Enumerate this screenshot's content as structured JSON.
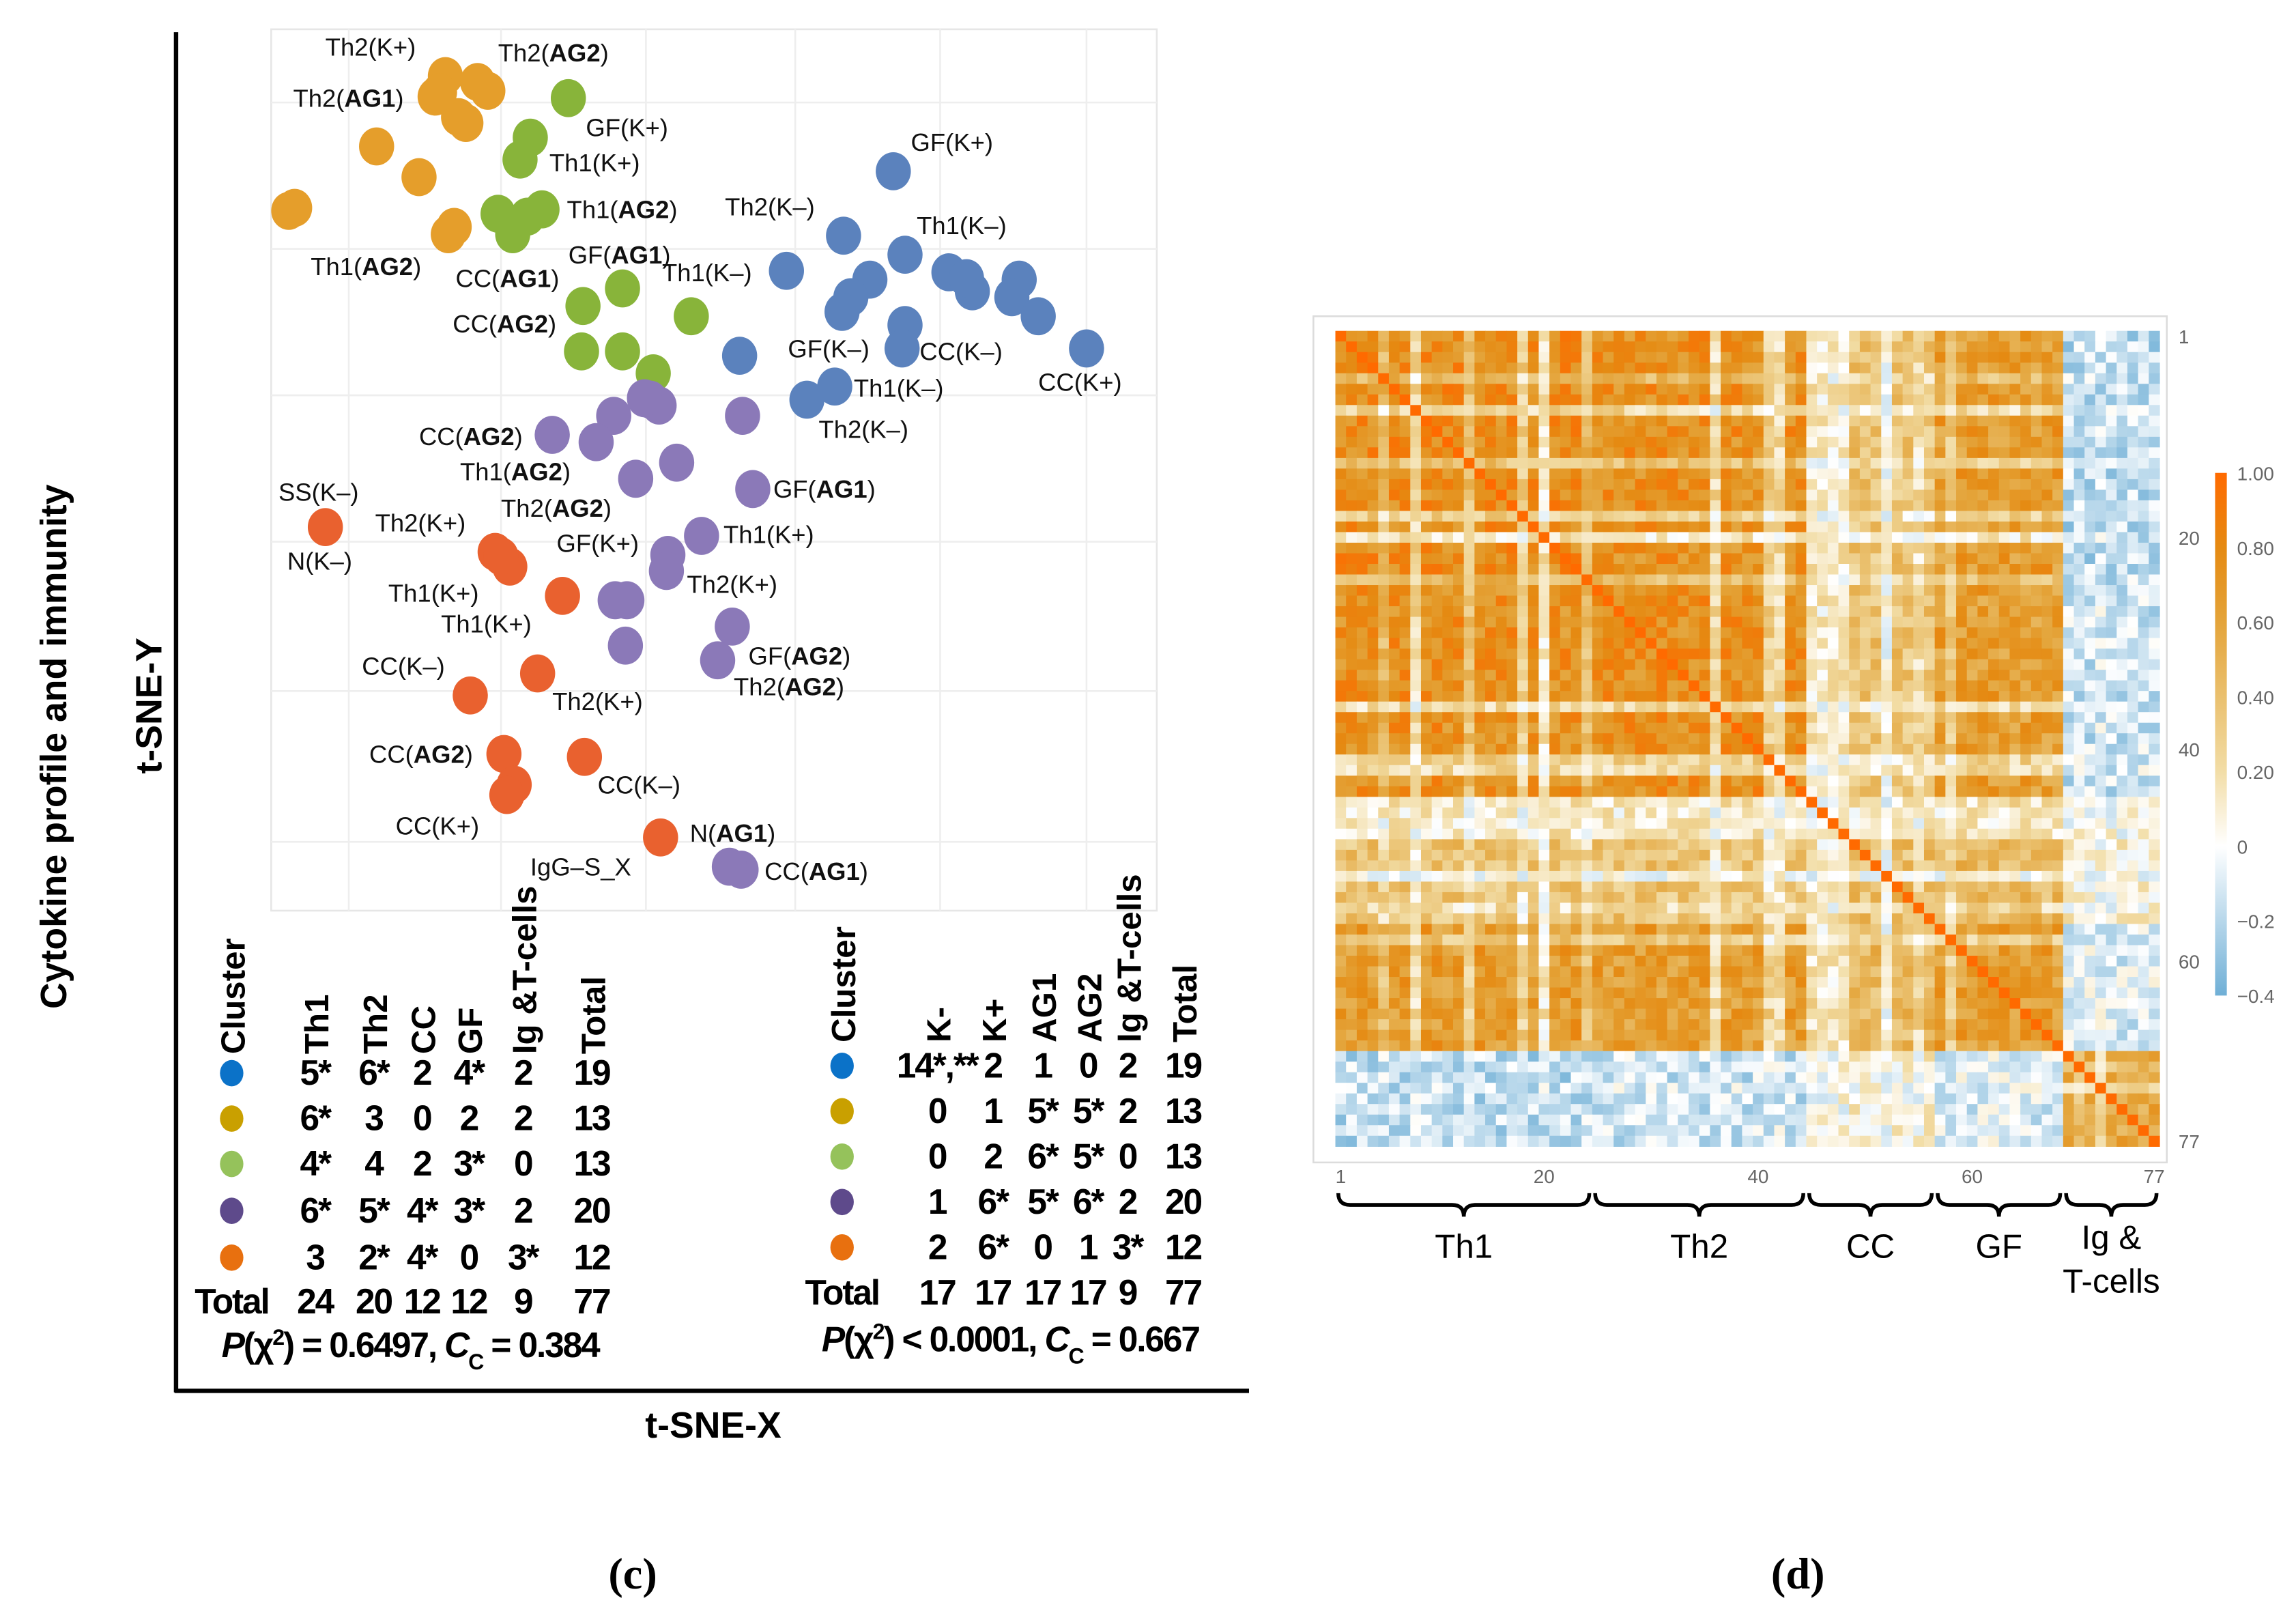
{
  "figure": {
    "panel_c_label": "(c)",
    "panel_d_label": "(d)"
  },
  "chart_data": [
    {
      "type": "scatter",
      "title": "",
      "xlabel": "t-SNE-X",
      "ylabel": "t-SNE-Y",
      "outer_ylabel": "Cytokine profile and immunity",
      "xlim": [
        0,
        605
      ],
      "ylim": [
        0,
        602
      ],
      "grid": true,
      "series": [
        {
          "name": "cluster-blue",
          "color": "#5B82BD",
          "points": [
            [
              425,
              505
            ],
            [
              391,
              461
            ],
            [
              433,
              448
            ],
            [
              352,
              437
            ],
            [
              409,
              431
            ],
            [
              396,
              419
            ],
            [
              390,
              409
            ],
            [
              463,
              436
            ],
            [
              479,
              423
            ],
            [
              511,
              431
            ],
            [
              506,
              419
            ],
            [
              524,
              406
            ],
            [
              433,
              400
            ],
            [
              431,
              384
            ],
            [
              557,
              384
            ],
            [
              320,
              379
            ],
            [
              385,
              358
            ],
            [
              366,
              349
            ],
            [
              475,
              432
            ]
          ]
        },
        {
          "name": "cluster-gold",
          "color": "#E59E2B",
          "points": [
            [
              119,
              570
            ],
            [
              112,
              556
            ],
            [
              141,
              566
            ],
            [
              148,
              560
            ],
            [
              128,
              542
            ],
            [
              133,
              538
            ],
            [
              72,
              522
            ],
            [
              101,
              501
            ],
            [
              12,
              478
            ],
            [
              16,
              480
            ],
            [
              121,
              462
            ],
            [
              125,
              467
            ],
            [
              115,
              559
            ]
          ]
        },
        {
          "name": "cluster-green",
          "color": "#88B43A",
          "points": [
            [
              203,
              555
            ],
            [
              177,
              528
            ],
            [
              170,
              513
            ],
            [
              155,
              476
            ],
            [
              165,
              462
            ],
            [
              185,
              479
            ],
            [
              213,
              413
            ],
            [
              240,
              425
            ],
            [
              287,
              406
            ],
            [
              212,
              382
            ],
            [
              240,
              382
            ],
            [
              261,
              367
            ],
            [
              175,
              474
            ]
          ]
        },
        {
          "name": "cluster-purple",
          "color": "#8B79B8",
          "points": [
            [
              259,
              349
            ],
            [
              265,
              345
            ],
            [
              234,
              338
            ],
            [
              222,
              320
            ],
            [
              192,
              325
            ],
            [
              249,
              295
            ],
            [
              277,
              306
            ],
            [
              322,
              338
            ],
            [
              329,
              288
            ],
            [
              294,
              256
            ],
            [
              271,
              243
            ],
            [
              270,
              232
            ],
            [
              235,
              212
            ],
            [
              243,
              212
            ],
            [
              242,
              181
            ],
            [
              315,
              194
            ],
            [
              305,
              171
            ],
            [
              321,
              28
            ],
            [
              313,
              30
            ],
            [
              255,
              350
            ]
          ]
        },
        {
          "name": "cluster-orange",
          "color": "#E9612F",
          "points": [
            [
              37,
              262
            ],
            [
              153,
              245
            ],
            [
              163,
              235
            ],
            [
              199,
              215
            ],
            [
              182,
              162
            ],
            [
              136,
              147
            ],
            [
              159,
              107
            ],
            [
              214,
              105
            ],
            [
              166,
              86
            ],
            [
              161,
              79
            ],
            [
              266,
              50
            ],
            [
              157,
              242
            ]
          ]
        }
      ],
      "annotations": [
        {
          "text": "Th2(K+)",
          "x": 37,
          "y": 584
        },
        {
          "text": "Th2(AG2)",
          "x": 155,
          "y": 580
        },
        {
          "text": "Th2(AG1)",
          "x": 15,
          "y": 549
        },
        {
          "text": "GF(K+)",
          "x": 215,
          "y": 529
        },
        {
          "text": "Th1(K+)",
          "x": 190,
          "y": 505
        },
        {
          "text": "Th1(AG2)",
          "x": 202,
          "y": 473
        },
        {
          "text": "Th1(AG2)",
          "x": 27,
          "y": 434
        },
        {
          "text": "CC(AG1)",
          "x": 126,
          "y": 426
        },
        {
          "text": "GF(AG1)",
          "x": 203,
          "y": 442
        },
        {
          "text": "Th1(K–)",
          "x": 267,
          "y": 430
        },
        {
          "text": "CC(AG2)",
          "x": 124,
          "y": 395
        },
        {
          "text": "GF(K+)",
          "x": 437,
          "y": 519
        },
        {
          "text": "Th2(K–)",
          "x": 310,
          "y": 475
        },
        {
          "text": "Th1(K–)",
          "x": 441,
          "y": 462
        },
        {
          "text": "GF(K–)",
          "x": 353,
          "y": 378
        },
        {
          "text": "CC(K–)",
          "x": 443,
          "y": 376
        },
        {
          "text": "Th1(K–)",
          "x": 398,
          "y": 351
        },
        {
          "text": "Th2(K–)",
          "x": 374,
          "y": 323
        },
        {
          "text": "CC(K+)",
          "x": 524,
          "y": 355
        },
        {
          "text": "CC(AG2)",
          "x": 101,
          "y": 318
        },
        {
          "text": "Th1(AG2)",
          "x": 129,
          "y": 294
        },
        {
          "text": "SS(K–)",
          "x": 5,
          "y": 280
        },
        {
          "text": "Th2(AG2)",
          "x": 157,
          "y": 269
        },
        {
          "text": "GF(AG1)",
          "x": 343,
          "y": 282
        },
        {
          "text": "Th2(K+)",
          "x": 71,
          "y": 259
        },
        {
          "text": "Th1(K+)",
          "x": 309,
          "y": 251
        },
        {
          "text": "N(K–)",
          "x": 11,
          "y": 233
        },
        {
          "text": "GF(K+)",
          "x": 195,
          "y": 245
        },
        {
          "text": "Th1(K+)",
          "x": 80,
          "y": 211
        },
        {
          "text": "Th2(K+)",
          "x": 284,
          "y": 217
        },
        {
          "text": "Th1(K+)",
          "x": 116,
          "y": 190
        },
        {
          "text": "GF(AG2)",
          "x": 326,
          "y": 168
        },
        {
          "text": "CC(K–)",
          "x": 62,
          "y": 161
        },
        {
          "text": "Th2(AG2)",
          "x": 316,
          "y": 147
        },
        {
          "text": "Th2(K+)",
          "x": 192,
          "y": 137
        },
        {
          "text": "CC(AG2)",
          "x": 67,
          "y": 101
        },
        {
          "text": "CC(K–)",
          "x": 223,
          "y": 80
        },
        {
          "text": "CC(K+)",
          "x": 85,
          "y": 52
        },
        {
          "text": "N(AG1)",
          "x": 286,
          "y": 47
        },
        {
          "text": "IgG–S_X",
          "x": 177,
          "y": 24
        },
        {
          "text": "CC(AG1)",
          "x": 337,
          "y": 21
        }
      ]
    },
    {
      "type": "heatmap",
      "title": "",
      "n_variables": 77,
      "x_ticks": [
        "1",
        "20",
        "40",
        "60",
        "77"
      ],
      "x_tick_values": [
        1,
        20,
        40,
        60,
        77
      ],
      "y_ticks": [
        "1",
        "20",
        "40",
        "60",
        "77"
      ],
      "y_tick_values": [
        1,
        20,
        40,
        60,
        77
      ],
      "value_range": [
        -0.4,
        1.0
      ],
      "groups": [
        {
          "label": "Th1",
          "start": 1,
          "end": 24
        },
        {
          "label": "Th2",
          "start": 25,
          "end": 44
        },
        {
          "label": "CC",
          "start": 45,
          "end": 56
        },
        {
          "label": "GF",
          "start": 57,
          "end": 68
        },
        {
          "label_lines": [
            "Ig &",
            "T-cells"
          ],
          "start": 69,
          "end": 77
        }
      ],
      "block_means": [
        [
          0.78,
          0.74,
          0.38,
          0.66,
          -0.18
        ],
        [
          0.74,
          0.75,
          0.38,
          0.64,
          -0.14
        ],
        [
          0.38,
          0.38,
          0.4,
          0.46,
          0.08
        ],
        [
          0.66,
          0.64,
          0.46,
          0.64,
          -0.08
        ],
        [
          -0.18,
          -0.14,
          0.08,
          -0.08,
          0.55
        ]
      ],
      "variable_strength_overrides": {
        "5": 0.6,
        "8": 0.3,
        "13": 0.5,
        "18": 0.4,
        "20": 0.2,
        "24": 0.6,
        "36": 0.3,
        "41": 0.4,
        "42": 0.3,
        "45": 0.4,
        "46": 0.3,
        "47": 0.3,
        "48": 0.35,
        "52": 0.1,
        "55": 0.5,
        "58": 0.5,
        "70": 0.7,
        "72": 0.5
      },
      "colorbar": {
        "ticks": [
          "1.00",
          "0.80",
          "0.60",
          "0.40",
          "0.20",
          "0",
          "−0.2",
          "−0.4"
        ],
        "tick_values": [
          1.0,
          0.8,
          0.6,
          0.4,
          0.2,
          0,
          -0.2,
          -0.4
        ],
        "stops": [
          {
            "value": -0.4,
            "color": "#6FAFD6"
          },
          {
            "value": 0.0,
            "color": "#FFFFFF"
          },
          {
            "value": 0.2,
            "color": "#F2DDA6"
          },
          {
            "value": 0.4,
            "color": "#EAC06E"
          },
          {
            "value": 0.6,
            "color": "#E4A43A"
          },
          {
            "value": 0.8,
            "color": "#E58A12"
          },
          {
            "value": 1.0,
            "color": "#FF6A00"
          }
        ]
      }
    }
  ],
  "tables": [
    {
      "headers": [
        "Cluster",
        "Th1",
        "Th2",
        "CC",
        "GF",
        "Ig &T-cells",
        "Total"
      ],
      "rows": [
        {
          "color": "#0B72C8",
          "cells": [
            "5*",
            "6*",
            "2",
            "4*",
            "2",
            "19"
          ]
        },
        {
          "color": "#C9A000",
          "cells": [
            "6*",
            "3",
            "0",
            "2",
            "2",
            "13"
          ]
        },
        {
          "color": "#95C25B",
          "cells": [
            "4*",
            "4",
            "2",
            "3*",
            "0",
            "13"
          ]
        },
        {
          "color": "#5E4A8B",
          "cells": [
            "6*",
            "5*",
            "4*",
            "3*",
            "2",
            "20"
          ]
        },
        {
          "color": "#E8700F",
          "cells": [
            "3",
            "2*",
            "4*",
            "0",
            "3*",
            "12"
          ]
        }
      ],
      "total_label": "Total",
      "totals": [
        "24",
        "20",
        "12",
        "12",
        "9",
        "77"
      ],
      "stat": {
        "p": "P",
        "chi": "(χ",
        "sup": "2",
        "p_rel": ") = 0.6497, ",
        "c": "C",
        "c_sub": "C",
        "c_rel": " = 0.384"
      }
    },
    {
      "headers": [
        "Cluster",
        "K-",
        "K+",
        "AG1",
        "AG2",
        "Ig &T-cells",
        "Total"
      ],
      "rows": [
        {
          "color": "#0B72C8",
          "cells": [
            "14*,**",
            "2",
            "1",
            "0",
            "2",
            "19"
          ]
        },
        {
          "color": "#C9A000",
          "cells": [
            "0",
            "1",
            "5*",
            "5*",
            "2",
            "13"
          ]
        },
        {
          "color": "#95C25B",
          "cells": [
            "0",
            "2",
            "6*",
            "5*",
            "0",
            "13"
          ]
        },
        {
          "color": "#5E4A8B",
          "cells": [
            "1",
            "6*",
            "5*",
            "6*",
            "2",
            "20"
          ]
        },
        {
          "color": "#E8700F",
          "cells": [
            "2",
            "6*",
            "0",
            "1",
            "3*",
            "12"
          ]
        }
      ],
      "total_label": "Total",
      "totals": [
        "17",
        "17",
        "17",
        "17",
        "9",
        "77"
      ],
      "stat": {
        "p": "P",
        "chi": "(χ",
        "sup": "2",
        "p_rel": ") < 0.0001, ",
        "c": "C",
        "c_sub": "C",
        "c_rel": " = 0.667"
      }
    }
  ]
}
